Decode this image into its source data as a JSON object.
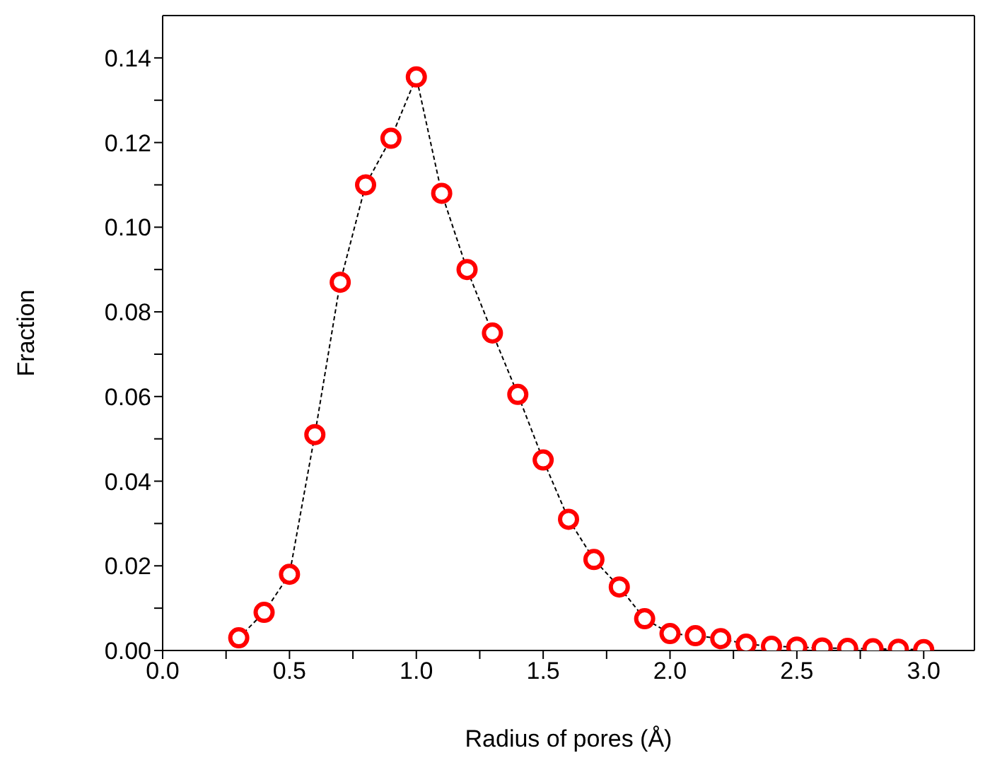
{
  "chart_data": {
    "type": "line",
    "xlabel": "Radius of pores (Å)",
    "ylabel": "Fraction",
    "x": [
      0.3,
      0.4,
      0.5,
      0.6,
      0.7,
      0.8,
      0.9,
      1.0,
      1.1,
      1.2,
      1.3,
      1.4,
      1.5,
      1.6,
      1.7,
      1.8,
      1.9,
      2.0,
      2.1,
      2.2,
      2.3,
      2.4,
      2.5,
      2.6,
      2.7,
      2.8,
      2.9,
      3.0
    ],
    "series": [
      {
        "type": "line",
        "color": "#000000",
        "marker": "none",
        "line_style": "dashed",
        "values": [
          0.003,
          0.009,
          0.018,
          0.051,
          0.087,
          0.11,
          0.121,
          0.1355,
          0.108,
          0.09,
          0.075,
          0.0605,
          0.045,
          0.031,
          0.0215,
          0.015,
          0.0075,
          0.004,
          0.0035,
          0.0028,
          0.0015,
          0.001,
          0.0008,
          0.0006,
          0.0005,
          0.0004,
          0.0003,
          0.0002
        ]
      },
      {
        "type": "scatter",
        "color": "#ff0000",
        "marker": "circle",
        "values": [
          0.003,
          0.009,
          0.018,
          0.051,
          0.087,
          0.11,
          0.121,
          0.1355,
          0.108,
          0.09,
          0.075,
          0.0605,
          0.045,
          0.031,
          0.0215,
          0.015,
          0.0075,
          0.004,
          0.0035,
          0.0028,
          0.0015,
          0.001,
          0.0008,
          0.0006,
          0.0005,
          0.0004,
          0.0003,
          0.0002
        ]
      }
    ],
    "xlim": [
      0,
      3.2
    ],
    "ylim": [
      0,
      0.15
    ],
    "xticks": [
      {
        "value": 0,
        "label": "0.0"
      },
      {
        "value": 0.25,
        "label": null
      },
      {
        "value": 0.5,
        "label": "0.5"
      },
      {
        "value": 0.75,
        "label": null
      },
      {
        "value": 1,
        "label": "1.0"
      },
      {
        "value": 1.25,
        "label": null
      },
      {
        "value": 1.5,
        "label": "1.5"
      },
      {
        "value": 1.75,
        "label": null
      },
      {
        "value": 2,
        "label": "2.0"
      },
      {
        "value": 2.25,
        "label": null
      },
      {
        "value": 2.5,
        "label": "2.5"
      },
      {
        "value": 2.75,
        "label": null
      },
      {
        "value": 3,
        "label": "3.0"
      }
    ],
    "yticks": [
      {
        "value": 0,
        "label": "0.00"
      },
      {
        "value": 0.01,
        "label": null
      },
      {
        "value": 0.02,
        "label": "0.02"
      },
      {
        "value": 0.03,
        "label": null
      },
      {
        "value": 0.04,
        "label": "0.04"
      },
      {
        "value": 0.05,
        "label": null
      },
      {
        "value": 0.06,
        "label": "0.06"
      },
      {
        "value": 0.07,
        "label": null
      },
      {
        "value": 0.08,
        "label": "0.08"
      },
      {
        "value": 0.09,
        "label": null
      },
      {
        "value": 0.1,
        "label": "0.10"
      },
      {
        "value": 0.11,
        "label": null
      },
      {
        "value": 0.12,
        "label": "0.12"
      },
      {
        "value": 0.13,
        "label": null
      },
      {
        "value": 0.14,
        "label": "0.14"
      }
    ],
    "grid": false,
    "legend": false
  }
}
